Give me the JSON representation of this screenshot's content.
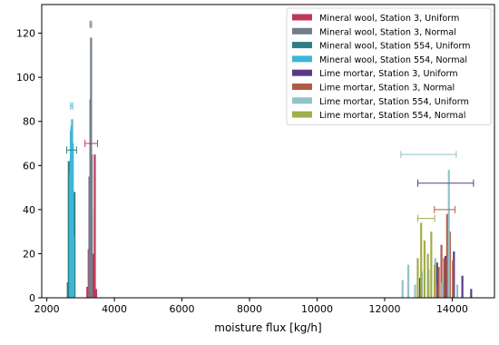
{
  "chart_data": {
    "type": "bar",
    "title": "",
    "xlabel": "moisture flux [kg/h]",
    "ylabel": "",
    "xlim": [
      1850,
      15250
    ],
    "ylim": [
      0,
      133
    ],
    "x_ticks": [
      "2000",
      "4000",
      "6000",
      "8000",
      "10000",
      "12000",
      "14000"
    ],
    "y_ticks": [
      "0",
      "20",
      "40",
      "60",
      "80",
      "100",
      "120"
    ],
    "grid": false,
    "legend_position": "top-right",
    "series": [
      {
        "name": "Mineral wool, Station 3, Uniform",
        "color": "#c0365a",
        "bars": [
          [
            3200,
            5
          ],
          [
            3240,
            22
          ],
          [
            3280,
            45
          ],
          [
            3330,
            40
          ],
          [
            3370,
            20
          ],
          [
            3420,
            65
          ],
          [
            3460,
            4
          ]
        ],
        "error_bar": {
          "y": 70,
          "xmin": 3130,
          "xmax": 3500
        }
      },
      {
        "name": "Mineral wool, Station 3, Normal",
        "color": "#737d89",
        "bars": [
          [
            3260,
            55
          ],
          [
            3290,
            90
          ],
          [
            3310,
            118
          ],
          [
            3330,
            65
          ]
        ],
        "error_bar": {
          "y": 124,
          "xmin": 3280,
          "xmax": 3325
        }
      },
      {
        "name": "Mineral wool, Station 554, Uniform",
        "color": "#2e7f82",
        "bars": [
          [
            2620,
            7
          ],
          [
            2650,
            62
          ],
          [
            2680,
            45
          ],
          [
            2710,
            38
          ],
          [
            2740,
            55
          ],
          [
            2780,
            40
          ],
          [
            2820,
            48
          ]
        ],
        "error_bar": {
          "y": 67,
          "xmin": 2590,
          "xmax": 2880
        }
      },
      {
        "name": "Mineral wool, Station 554, Normal",
        "color": "#3fb6d8",
        "bars": [
          [
            2690,
            56
          ],
          [
            2710,
            76
          ],
          [
            2730,
            78
          ],
          [
            2750,
            81
          ],
          [
            2770,
            70
          ],
          [
            2790,
            28
          ]
        ],
        "error_bar": {
          "y": 87,
          "xmin": 2705,
          "xmax": 2765
        }
      },
      {
        "name": "Lime mortar, Station 3, Uniform",
        "color": "#5b3a84",
        "bars": [
          [
            13050,
            9
          ],
          [
            13300,
            9
          ],
          [
            13550,
            16
          ],
          [
            13800,
            19
          ],
          [
            14050,
            21
          ],
          [
            14300,
            10
          ],
          [
            14560,
            4
          ]
        ],
        "error_bar": {
          "y": 52,
          "xmin": 12980,
          "xmax": 14630
        }
      },
      {
        "name": "Lime mortar, Station 3, Normal",
        "color": "#b05b4a",
        "bars": [
          [
            13520,
            6
          ],
          [
            13600,
            14
          ],
          [
            13680,
            24
          ],
          [
            13760,
            18
          ],
          [
            13850,
            38
          ],
          [
            13930,
            30
          ],
          [
            14020,
            17
          ]
        ],
        "error_bar": {
          "y": 40,
          "xmin": 13470,
          "xmax": 14080
        }
      },
      {
        "name": "Lime mortar, Station 554, Uniform",
        "color": "#8fc4c9",
        "bars": [
          [
            12530,
            8
          ],
          [
            12700,
            15
          ],
          [
            12900,
            6
          ],
          [
            13100,
            12
          ],
          [
            13300,
            13
          ],
          [
            13500,
            18
          ],
          [
            13700,
            7
          ],
          [
            13900,
            58
          ],
          [
            14150,
            6
          ]
        ],
        "error_bar": {
          "y": 65,
          "xmin": 12480,
          "xmax": 14120
        }
      },
      {
        "name": "Lime mortar, Station 554, Normal",
        "color": "#a3ad4a",
        "bars": [
          [
            12980,
            18
          ],
          [
            13080,
            34
          ],
          [
            13180,
            26
          ],
          [
            13280,
            20
          ],
          [
            13380,
            30
          ],
          [
            13480,
            15
          ]
        ],
        "error_bar": {
          "y": 36,
          "xmin": 12980,
          "xmax": 13480
        }
      }
    ]
  }
}
